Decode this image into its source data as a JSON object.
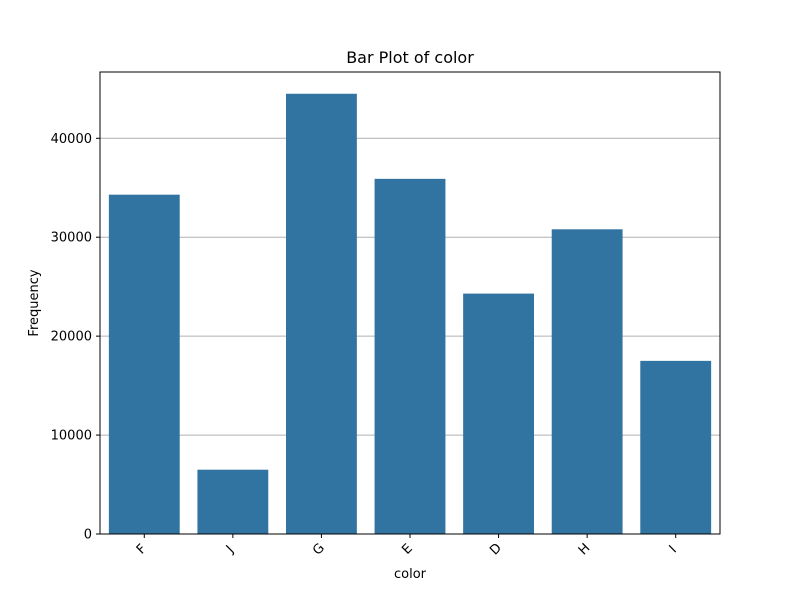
{
  "chart_data": {
    "type": "bar",
    "title": "Bar Plot of color",
    "xlabel": "color",
    "ylabel": "Frequency",
    "categories": [
      "F",
      "J",
      "G",
      "E",
      "D",
      "H",
      "I"
    ],
    "values": [
      34300,
      6500,
      44500,
      35900,
      24300,
      30800,
      17500
    ],
    "ylim": [
      0,
      46700
    ],
    "yticks": [
      0,
      10000,
      20000,
      30000,
      40000
    ],
    "ytick_labels": [
      "0",
      "10000",
      "20000",
      "30000",
      "40000"
    ],
    "grid": "horizontal",
    "bar_color": "#3274a1",
    "grid_color": "#b0b0b0"
  }
}
